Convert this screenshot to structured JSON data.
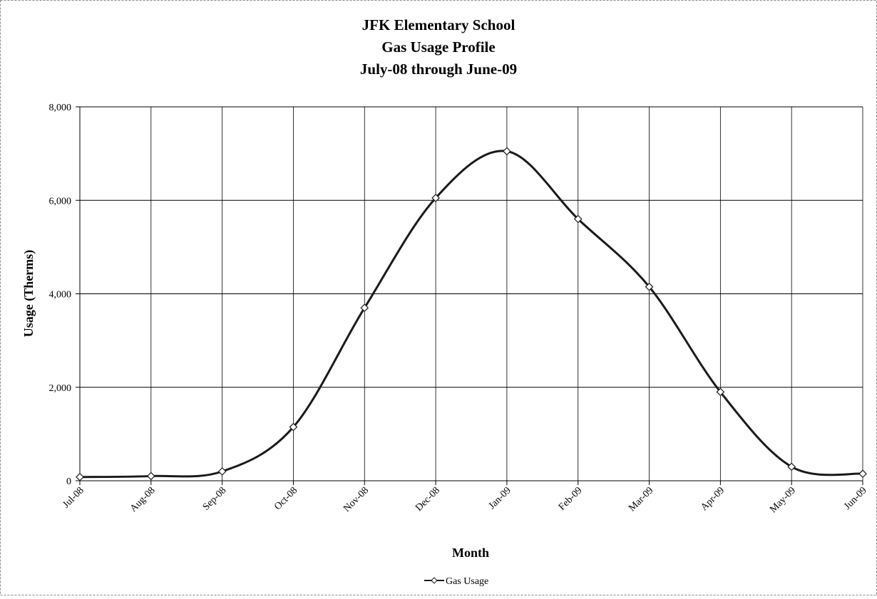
{
  "chart_data": {
    "type": "line",
    "title": [
      "JFK Elementary School",
      "Gas Usage Profile",
      "July-08 through June-09"
    ],
    "x_label": "Month",
    "y_label": "Usage  (Therms)",
    "categories": [
      "Jul-08",
      "Aug-08",
      "Sep-08",
      "Oct-08",
      "Nov-08",
      "Dec-08",
      "Jan-09",
      "Feb-09",
      "Mar-09",
      "Apr-09",
      "May-09",
      "Jun-09"
    ],
    "series": [
      {
        "name": "Gas Usage",
        "color": "#1a1a1a",
        "values": [
          80,
          100,
          200,
          1150,
          3700,
          6050,
          7050,
          5600,
          4150,
          1900,
          300,
          150
        ]
      }
    ],
    "ylim": [
      0,
      8000
    ],
    "yticks": [
      0,
      {
        "value": 2000,
        "label": "2,000"
      },
      {
        "value": 4000,
        "label": "4,000"
      },
      {
        "value": 6000,
        "label": "6,000"
      },
      {
        "value": 8000,
        "label": "8,000"
      }
    ],
    "grid": true,
    "smooth": true,
    "legend": "bottom"
  }
}
